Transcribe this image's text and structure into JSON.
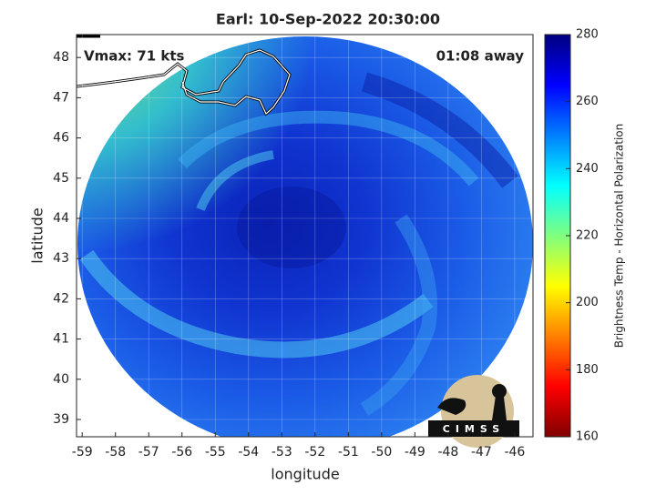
{
  "chart_data": {
    "type": "map",
    "title": "Earl: 10-Sep-2022 20:30:00",
    "annotations": [
      "Vmax: 71 kts",
      "01:08 away"
    ],
    "x_label": "longitude",
    "y_label": "latitude",
    "xlim": [
      -59.17,
      -45.45
    ],
    "xticks": [
      -59,
      -58,
      -57,
      -56,
      -55,
      -54,
      -53,
      -52,
      -51,
      -50,
      -49,
      -48,
      -47,
      -46
    ],
    "ylim": [
      38.57,
      48.57
    ],
    "yticks": [
      39,
      40,
      41,
      42,
      43,
      44,
      45,
      46,
      47,
      48
    ],
    "grid": true,
    "colorbar": {
      "label": "Brightness Temp - Horizontal Polarization",
      "lim": [
        160,
        280
      ],
      "ticks": [
        160,
        180,
        200,
        220,
        240,
        260,
        280
      ],
      "colormap": "jet"
    },
    "logo": "CIMSS"
  }
}
